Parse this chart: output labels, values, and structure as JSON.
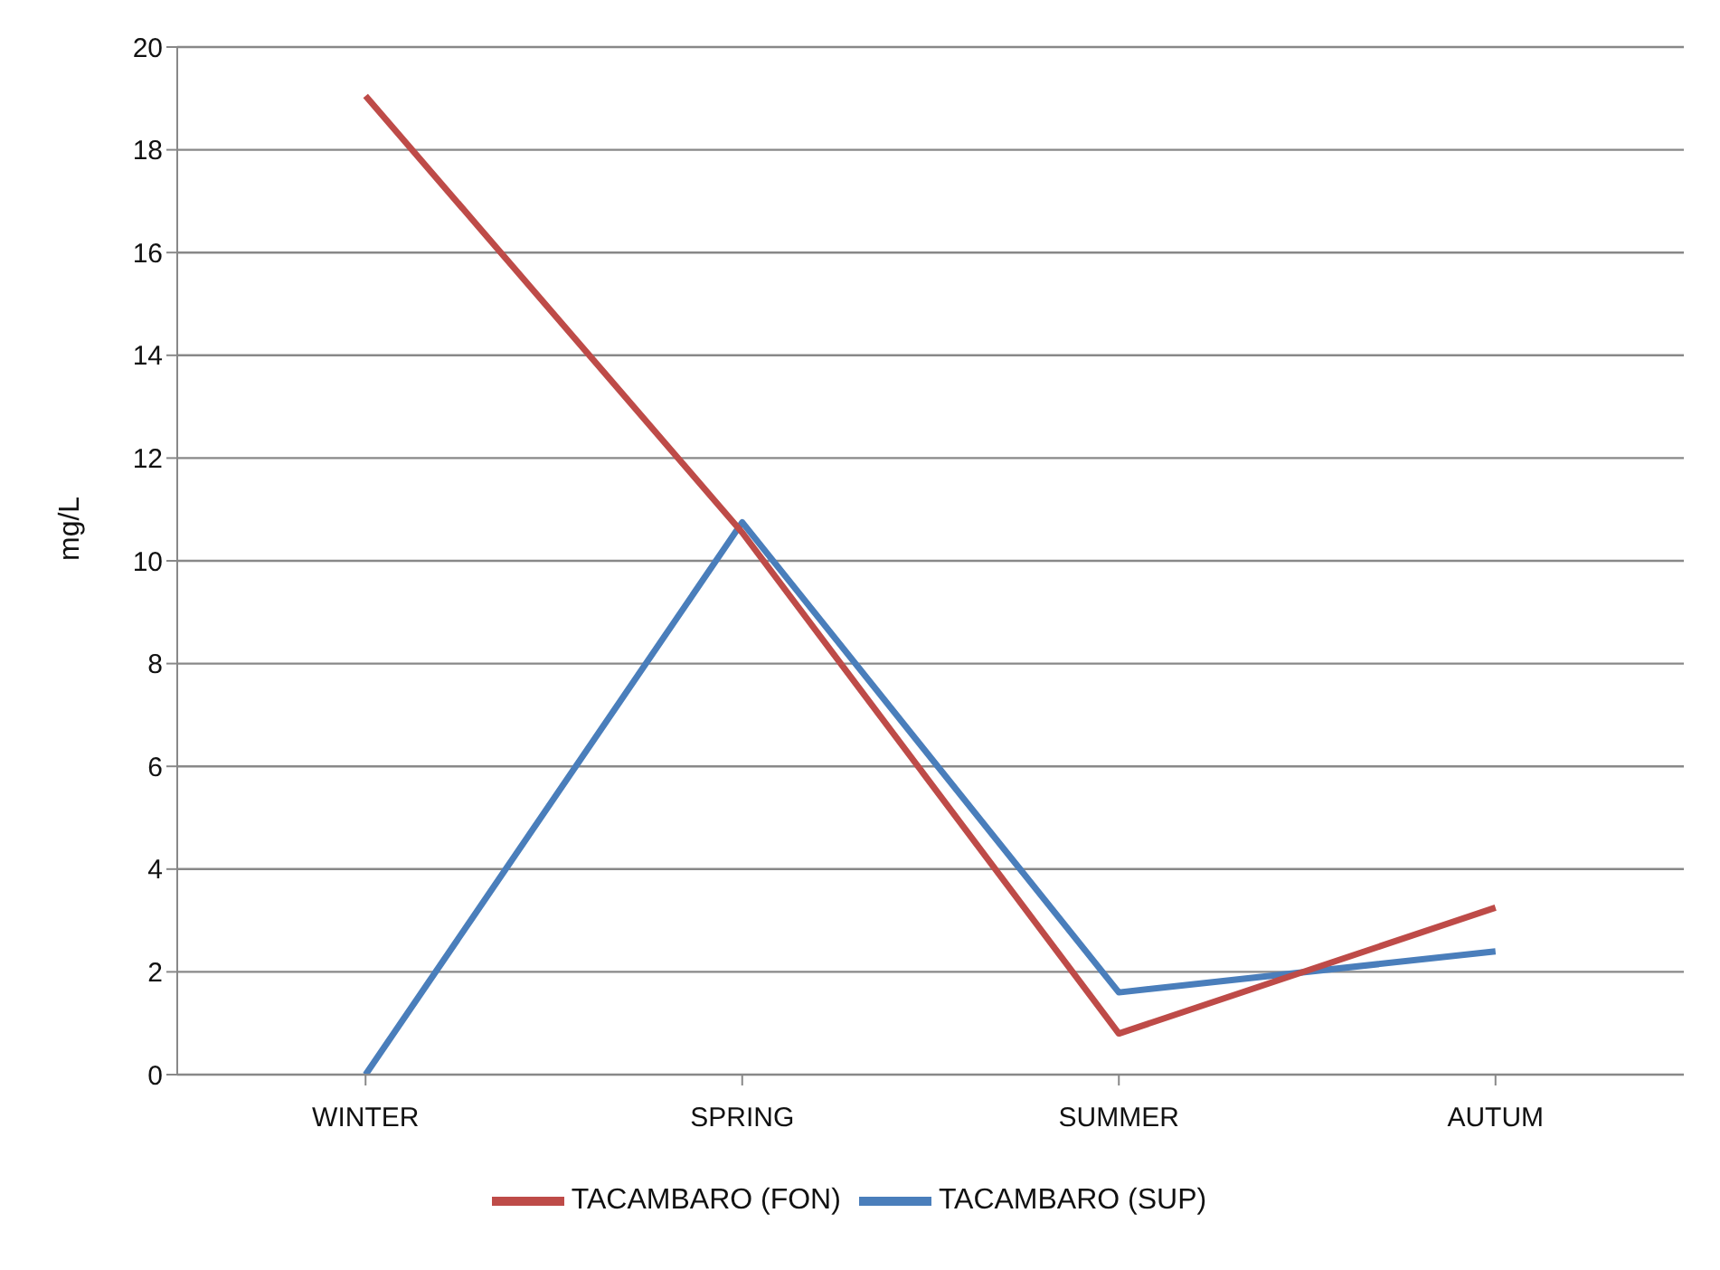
{
  "chart_data": {
    "type": "line",
    "ylabel": "mg/L",
    "categories": [
      "WINTER",
      "SPRING",
      "SUMMER",
      "AUTUM"
    ],
    "series": [
      {
        "name": "TACAMBARO (SUP)",
        "color": "#4a7ebb",
        "values": [
          0,
          10.75,
          1.6,
          2.4
        ]
      },
      {
        "name": "TACAMBARO (FON)",
        "color": "#be4b48",
        "values": [
          19.05,
          10.55,
          0.8,
          3.25
        ]
      }
    ],
    "ylim": [
      0,
      20
    ],
    "yticks": [
      0,
      2,
      4,
      6,
      8,
      10,
      12,
      14,
      16,
      18,
      20
    ],
    "grid": "y",
    "legend": "bottom",
    "marker": "none",
    "line_style": "solid"
  }
}
